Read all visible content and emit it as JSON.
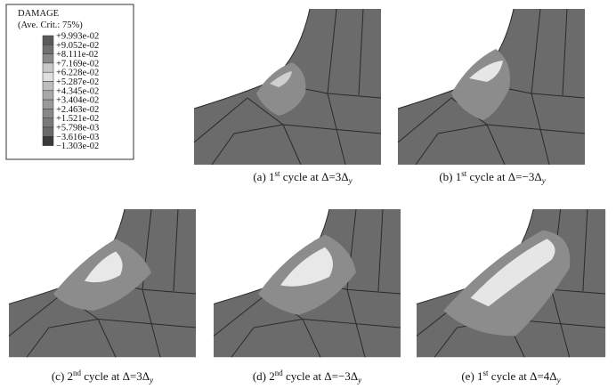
{
  "legend": {
    "title": "DAMAGE",
    "subtitle": "(Ave. Crit.: 75%)",
    "values": [
      "+9.993e-02",
      "+9.052e-02",
      "+8.111e-02",
      "+7.169e-02",
      "+6.228e-02",
      "+5.287e-02",
      "+4.345e-02",
      "+3.404e-02",
      "+2.463e-02",
      "+1.521e-02",
      "+5.798e-03",
      "−3.616e-03",
      "−1.303e-02"
    ]
  },
  "panels": [
    {
      "label": "(a) 1",
      "sup": "st",
      "text": " cycle at  Δ=3Δ",
      "sub": "y"
    },
    {
      "label": "(b) 1",
      "sup": "st",
      "text": " cycle at  Δ=−3Δ",
      "sub": "y"
    },
    {
      "label": "(c) 2",
      "sup": "nd",
      "text": " cycle at  Δ=3Δ",
      "sub": "y"
    },
    {
      "label": "(d) 2",
      "sup": "nd",
      "text": " cycle at  Δ=−3Δ",
      "sub": "y"
    },
    {
      "label": "(e) 1",
      "sup": "st",
      "text": " cycle at  Δ=4Δ",
      "sub": "y"
    }
  ]
}
